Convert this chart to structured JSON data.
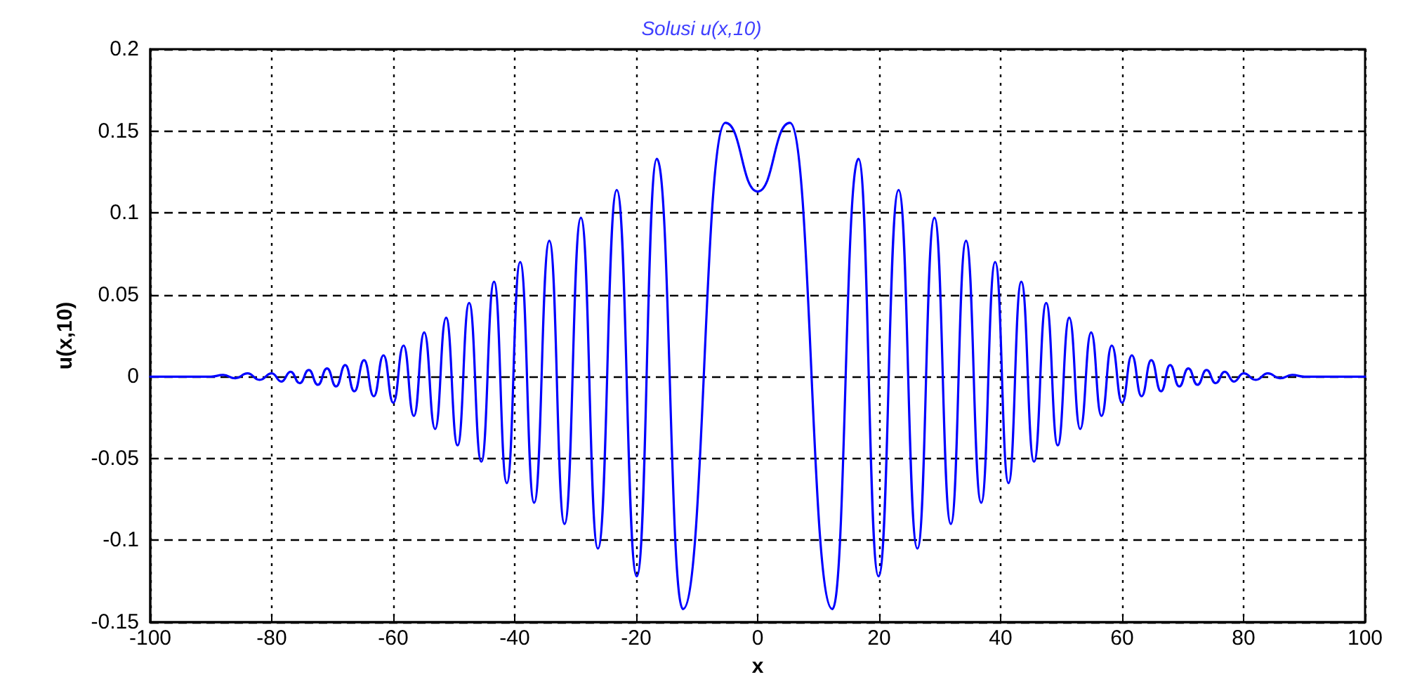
{
  "chart_data": {
    "type": "line",
    "title": "Solusi u(x,10)",
    "xlabel": "x",
    "ylabel": "u(x,10)",
    "x": [
      -100,
      -90,
      -88,
      -86,
      -84,
      -82,
      -80,
      -78.4,
      -76.9,
      -75.4,
      -73.9,
      -72.4,
      -70.9,
      -69.4,
      -67.9,
      -66.4,
      -64.8,
      -63.2,
      -61.6,
      -60,
      -58.3,
      -56.6,
      -54.9,
      -53.1,
      -51.3,
      -49.4,
      -47.5,
      -45.5,
      -43.4,
      -41.3,
      -39.1,
      -36.8,
      -34.3,
      -31.8,
      -29.1,
      -26.3,
      -23.2,
      -19.9,
      -16.6,
      -12.3,
      -5.3,
      0,
      5.3,
      12.3,
      16.6,
      19.9,
      23.2,
      26.3,
      29.1,
      31.8,
      34.3,
      36.8,
      39.1,
      41.3,
      43.4,
      45.5,
      47.5,
      49.4,
      51.3,
      53.1,
      54.9,
      56.6,
      58.3,
      60,
      61.6,
      63.2,
      64.8,
      66.4,
      67.9,
      69.4,
      70.9,
      72.4,
      73.9,
      75.4,
      76.9,
      78.4,
      80,
      82,
      84,
      86,
      88,
      90,
      100
    ],
    "series": [
      {
        "color": "#0000ff",
        "values": [
          0,
          0,
          0.001,
          -0.001,
          0.002,
          -0.002,
          0.002,
          -0.003,
          0.003,
          -0.004,
          0.004,
          -0.005,
          0.005,
          -0.006,
          0.007,
          -0.009,
          0.01,
          -0.012,
          0.013,
          -0.016,
          0.019,
          -0.024,
          0.027,
          -0.032,
          0.036,
          -0.042,
          0.045,
          -0.052,
          0.058,
          -0.065,
          0.07,
          -0.077,
          0.083,
          -0.09,
          0.097,
          -0.105,
          0.114,
          -0.122,
          0.133,
          -0.142,
          0.155,
          0.113,
          0.155,
          -0.142,
          0.133,
          -0.122,
          0.114,
          -0.105,
          0.097,
          -0.09,
          0.083,
          -0.077,
          0.07,
          -0.065,
          0.058,
          -0.052,
          0.045,
          -0.042,
          0.036,
          -0.032,
          0.027,
          -0.024,
          0.019,
          -0.016,
          0.013,
          -0.012,
          0.01,
          -0.009,
          0.007,
          -0.006,
          0.005,
          -0.005,
          0.004,
          -0.004,
          0.003,
          -0.003,
          0.002,
          -0.002,
          0.002,
          -0.001,
          0.001,
          0,
          0
        ]
      }
    ],
    "xlim": [
      -100,
      100
    ],
    "xticks": [
      -100,
      -80,
      -60,
      -40,
      -20,
      0,
      20,
      40,
      60,
      80,
      100
    ],
    "ylim": [
      -0.15,
      0.2
    ],
    "yticks": [
      -0.15,
      -0.1,
      -0.05,
      0,
      0.05,
      0.1,
      0.15,
      0.2
    ],
    "grid": true,
    "marker": "none",
    "line_style": "solid"
  }
}
